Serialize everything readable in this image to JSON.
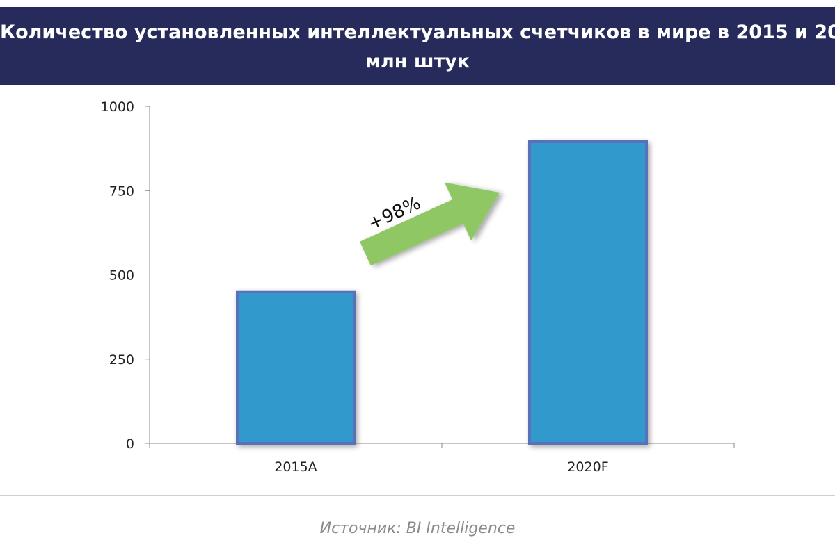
{
  "header": {
    "title_line1": "Количество установленных интеллектуальных счетчиков в мире в 2015 и 20",
    "title_line2": "млн штук"
  },
  "source": "Источник: BI Intelligence",
  "colors": {
    "banner": "#262b5c",
    "bar_fill": "#3399cc",
    "bar_border": "#5a6fb8",
    "arrow": "#8fc765",
    "axis": "#888888"
  },
  "chart_data": {
    "type": "bar",
    "categories": [
      "2015A",
      "2020F"
    ],
    "values": [
      450,
      895
    ],
    "title": "Количество установленных интеллектуальных счетчиков в мире в 2015 и 20",
    "subtitle": "млн штук",
    "xlabel": "",
    "ylabel": "",
    "ylim": [
      0,
      1000
    ],
    "yticks": [
      0,
      250,
      500,
      750,
      1000
    ],
    "grid": false,
    "legend": "none",
    "annotations": [
      {
        "text": "+98%",
        "kind": "arrow",
        "from": "2015A",
        "to": "2020F"
      }
    ]
  }
}
